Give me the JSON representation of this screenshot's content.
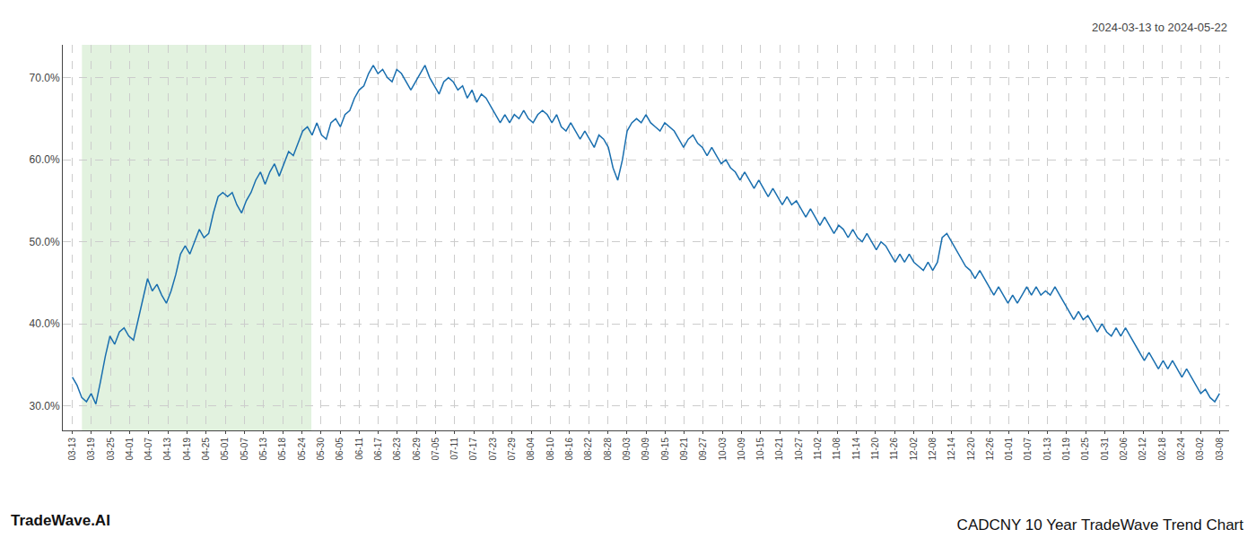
{
  "chart_data": {
    "type": "line",
    "title": "CADCNY 10 Year TradeWave Trend Chart",
    "subtitle": "2024-03-13 to 2024-05-22",
    "annotations": [
      {
        "text": "TradeWave.AI"
      }
    ],
    "color": "#1a6faf",
    "grid": true,
    "xlim": [
      -0.5,
      60.5
    ],
    "xticks": [
      {
        "value": 0,
        "label": "03-13"
      },
      {
        "value": 1,
        "label": "03-19"
      },
      {
        "value": 2,
        "label": "03-25"
      },
      {
        "value": 3,
        "label": "04-01"
      },
      {
        "value": 4,
        "label": "04-07"
      },
      {
        "value": 5,
        "label": "04-13"
      },
      {
        "value": 6,
        "label": "04-19"
      },
      {
        "value": 7,
        "label": "04-25"
      },
      {
        "value": 8,
        "label": "05-01"
      },
      {
        "value": 9,
        "label": "05-07"
      },
      {
        "value": 10,
        "label": "05-13"
      },
      {
        "value": 11,
        "label": "05-18"
      },
      {
        "value": 12,
        "label": "05-24"
      },
      {
        "value": 13,
        "label": "05-30"
      },
      {
        "value": 14,
        "label": "06-05"
      },
      {
        "value": 15,
        "label": "06-11"
      },
      {
        "value": 16,
        "label": "06-17"
      },
      {
        "value": 17,
        "label": "06-23"
      },
      {
        "value": 18,
        "label": "06-29"
      },
      {
        "value": 19,
        "label": "07-05"
      },
      {
        "value": 20,
        "label": "07-11"
      },
      {
        "value": 21,
        "label": "07-17"
      },
      {
        "value": 22,
        "label": "07-23"
      },
      {
        "value": 23,
        "label": "07-29"
      },
      {
        "value": 24,
        "label": "08-04"
      },
      {
        "value": 25,
        "label": "08-10"
      },
      {
        "value": 26,
        "label": "08-16"
      },
      {
        "value": 27,
        "label": "08-22"
      },
      {
        "value": 28,
        "label": "08-28"
      },
      {
        "value": 29,
        "label": "09-03"
      },
      {
        "value": 30,
        "label": "09-09"
      },
      {
        "value": 31,
        "label": "09-15"
      },
      {
        "value": 32,
        "label": "09-21"
      },
      {
        "value": 33,
        "label": "09-27"
      },
      {
        "value": 34,
        "label": "10-03"
      },
      {
        "value": 35,
        "label": "10-09"
      },
      {
        "value": 36,
        "label": "10-15"
      },
      {
        "value": 37,
        "label": "10-21"
      },
      {
        "value": 38,
        "label": "10-27"
      },
      {
        "value": 39,
        "label": "11-02"
      },
      {
        "value": 40,
        "label": "11-08"
      },
      {
        "value": 41,
        "label": "11-14"
      },
      {
        "value": 42,
        "label": "11-20"
      },
      {
        "value": 43,
        "label": "11-26"
      },
      {
        "value": 44,
        "label": "12-02"
      },
      {
        "value": 45,
        "label": "12-08"
      },
      {
        "value": 46,
        "label": "12-14"
      },
      {
        "value": 47,
        "label": "12-20"
      },
      {
        "value": 48,
        "label": "12-26"
      },
      {
        "value": 49,
        "label": "01-01"
      },
      {
        "value": 50,
        "label": "01-07"
      },
      {
        "value": 51,
        "label": "01-13"
      },
      {
        "value": 52,
        "label": "01-19"
      },
      {
        "value": 53,
        "label": "01-25"
      },
      {
        "value": 54,
        "label": "01-31"
      },
      {
        "value": 55,
        "label": "02-06"
      },
      {
        "value": 56,
        "label": "02-12"
      },
      {
        "value": 57,
        "label": "02-18"
      },
      {
        "value": 58,
        "label": "02-24"
      },
      {
        "value": 59,
        "label": "03-02"
      },
      {
        "value": 60,
        "label": "03-08"
      }
    ],
    "ylim": [
      27.0,
      74.0
    ],
    "yticks": [
      {
        "value": 30.0,
        "label": "30.0%"
      },
      {
        "value": 40.0,
        "label": "40.0%"
      },
      {
        "value": 50.0,
        "label": "50.0%"
      },
      {
        "value": 60.0,
        "label": "60.0%"
      },
      {
        "value": 70.0,
        "label": "70.0%"
      }
    ],
    "highlight": {
      "from": 1,
      "to": 12,
      "color": "#d6ecd2"
    },
    "values": [
      33.5,
      32.5,
      31.0,
      30.5,
      31.5,
      30.2,
      33.0,
      36.0,
      38.5,
      37.5,
      39.0,
      39.5,
      38.5,
      38.0,
      40.5,
      43.0,
      45.5,
      44.0,
      44.8,
      43.5,
      42.5,
      44.0,
      46.0,
      48.5,
      49.5,
      48.5,
      50.0,
      51.5,
      50.5,
      51.0,
      53.5,
      55.5,
      56.0,
      55.5,
      56.0,
      54.5,
      53.5,
      55.0,
      56.0,
      57.5,
      58.5,
      57.0,
      58.5,
      59.5,
      58.0,
      59.5,
      61.0,
      60.5,
      62.0,
      63.5,
      64.0,
      63.0,
      64.5,
      63.0,
      62.5,
      64.5,
      65.0,
      64.0,
      65.5,
      66.0,
      67.5,
      68.5,
      69.0,
      70.5,
      71.5,
      70.5,
      71.0,
      70.0,
      69.5,
      71.0,
      70.5,
      69.5,
      68.5,
      69.5,
      70.5,
      71.5,
      70.0,
      69.0,
      68.0,
      69.5,
      70.0,
      69.5,
      68.5,
      69.0,
      67.5,
      68.5,
      67.0,
      68.0,
      67.5,
      66.5,
      65.5,
      64.5,
      65.5,
      64.5,
      65.5,
      65.0,
      66.0,
      65.0,
      64.5,
      65.5,
      66.0,
      65.5,
      64.5,
      65.5,
      64.0,
      63.5,
      64.5,
      63.5,
      62.5,
      63.5,
      62.5,
      61.5,
      63.0,
      62.5,
      61.5,
      59.0,
      57.5,
      60.0,
      63.5,
      64.5,
      65.0,
      64.5,
      65.5,
      64.5,
      64.0,
      63.5,
      64.5,
      64.0,
      63.5,
      62.5,
      61.5,
      62.5,
      63.0,
      62.0,
      61.5,
      60.5,
      61.5,
      60.5,
      59.5,
      60.0,
      59.0,
      58.5,
      57.5,
      58.5,
      57.5,
      56.5,
      57.5,
      56.5,
      55.5,
      56.5,
      55.5,
      54.5,
      55.5,
      54.5,
      55.0,
      54.0,
      53.0,
      54.0,
      53.0,
      52.0,
      53.0,
      52.0,
      51.0,
      52.0,
      51.5,
      50.5,
      51.5,
      50.5,
      50.0,
      51.0,
      50.0,
      49.0,
      50.0,
      49.5,
      48.5,
      47.5,
      48.5,
      47.5,
      48.5,
      47.5,
      47.0,
      46.5,
      47.5,
      46.5,
      47.5,
      50.5,
      51.0,
      50.0,
      49.0,
      48.0,
      47.0,
      46.5,
      45.5,
      46.5,
      45.5,
      44.5,
      43.5,
      44.5,
      43.5,
      42.5,
      43.5,
      42.5,
      43.5,
      44.5,
      43.5,
      44.5,
      43.5,
      44.0,
      43.5,
      44.5,
      43.5,
      42.5,
      41.5,
      40.5,
      41.5,
      40.5,
      41.0,
      40.0,
      39.0,
      40.0,
      39.0,
      38.5,
      39.5,
      38.5,
      39.5,
      38.5,
      37.5,
      36.5,
      35.5,
      36.5,
      35.5,
      34.5,
      35.5,
      34.5,
      35.5,
      34.5,
      33.5,
      34.5,
      33.5,
      32.5,
      31.5,
      32.0,
      31.0,
      30.5,
      31.5
    ]
  }
}
